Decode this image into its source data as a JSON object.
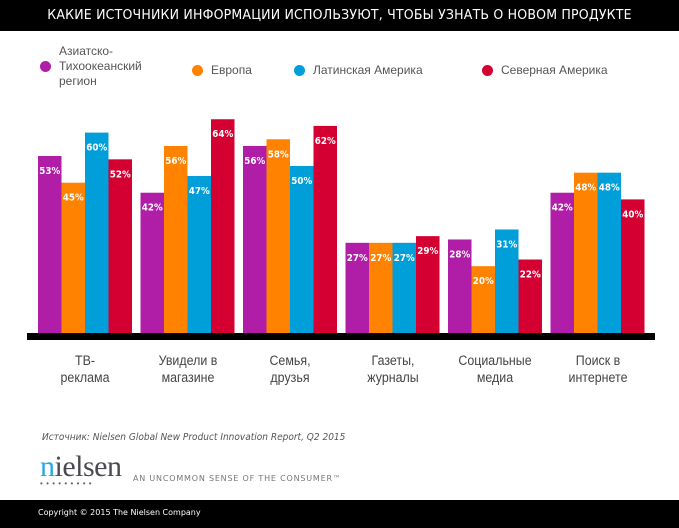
{
  "header": {
    "title": "КАКИЕ ИСТОЧНИКИ ИНФОРМАЦИИ ИСПОЛЬЗУЮТ, ЧТОБЫ УЗНАТЬ О НОВОМ ПРОДУКТЕ"
  },
  "chart_data": {
    "type": "bar",
    "title": "КАКИЕ ИСТОЧНИКИ ИНФОРМАЦИИ ИСПОЛЬЗУЮТ, ЧТОБЫ УЗНАТЬ О НОВОМ ПРОДУКТЕ",
    "xlabel": "",
    "ylabel": "",
    "ylim": [
      0,
      64
    ],
    "grid": false,
    "legend_position": "top",
    "value_format": "percent",
    "categories": [
      "ТВ-\nреклама",
      "Увидели в\nмагазине",
      "Семья,\nдрузья",
      "Газеты,\nжурналы",
      "Социальные\nмедиа",
      "Поиск в\nинтернете"
    ],
    "series": [
      {
        "name": "Азиатско-\nТихоокеанский\nрегион",
        "color": "#b01ea8",
        "values": [
          53,
          42,
          56,
          27,
          28,
          42
        ]
      },
      {
        "name": "Европа",
        "color": "#ff8200",
        "values": [
          45,
          56,
          58,
          27,
          20,
          48
        ]
      },
      {
        "name": "Латинская Америка",
        "color": "#009fda",
        "values": [
          60,
          47,
          50,
          27,
          31,
          48
        ]
      },
      {
        "name": "Северная Америка",
        "color": "#d50032",
        "values": [
          52,
          64,
          62,
          29,
          22,
          40
        ]
      }
    ]
  },
  "source": "Источник: Nielsen Global New Product Innovation Report, Q2 2015",
  "brand": {
    "logo_first": "n",
    "logo_rest": "ielsen",
    "logo_dots": "•••••••••",
    "tagline": "AN UNCOMMON SENSE OF THE CONSUMER™"
  },
  "footer": {
    "copyright": "Copyright © 2015 The Nielsen Company"
  }
}
